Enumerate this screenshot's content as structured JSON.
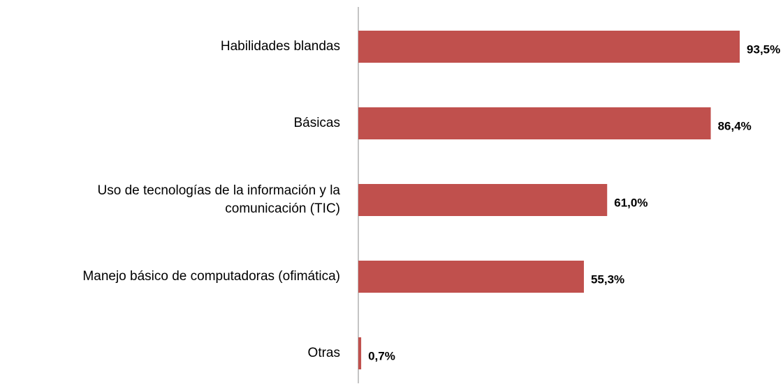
{
  "chart_data": {
    "type": "bar",
    "orientation": "horizontal",
    "categories": [
      "Habilidades blandas",
      "Básicas",
      "Uso de tecnologías de la información y la\ncomunicación (TIC)",
      "Manejo básico de computadoras (ofimática)",
      "Otras"
    ],
    "values": [
      93.5,
      86.4,
      61.0,
      55.3,
      0.7
    ],
    "value_labels": [
      "93,5%",
      "86,4%",
      "61,0%",
      "55,3%",
      "0,7%"
    ],
    "color": "#c0504d",
    "xlim": [
      0,
      100
    ]
  }
}
